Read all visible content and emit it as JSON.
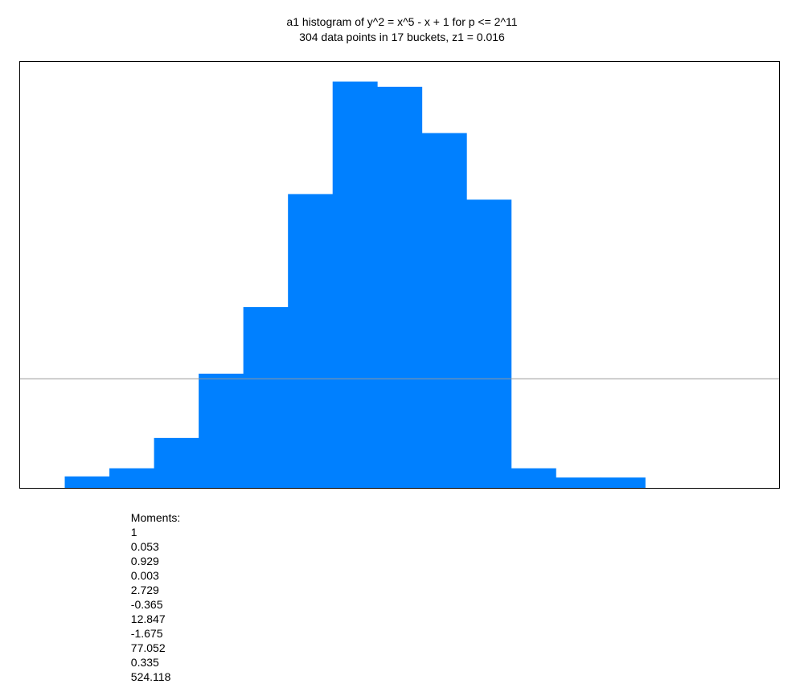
{
  "chart_data": {
    "type": "bar",
    "title": "a1 histogram of y^2 = x^5 - x + 1 for p <= 2^11",
    "subtitle": "304 data points in 17 buckets, z1 = 0.016",
    "bar_color": "#0080ff",
    "reference_line_color": "#999999",
    "bucket_count": 17,
    "values": [
      0,
      0.105,
      0.179,
      0.456,
      1.043,
      1.651,
      2.683,
      3.71,
      3.663,
      3.24,
      2.632,
      0.179,
      0.0947,
      0.0947,
      0,
      0,
      0
    ],
    "reference_value": 1.0,
    "ylim": [
      0,
      3.89
    ],
    "moments_label": "Moments:",
    "moments": [
      "1",
      "0.053",
      "0.929",
      "0.003",
      "2.729",
      "-0.365",
      "12.847",
      "-1.675",
      "77.052",
      "0.335",
      "524.118"
    ]
  }
}
